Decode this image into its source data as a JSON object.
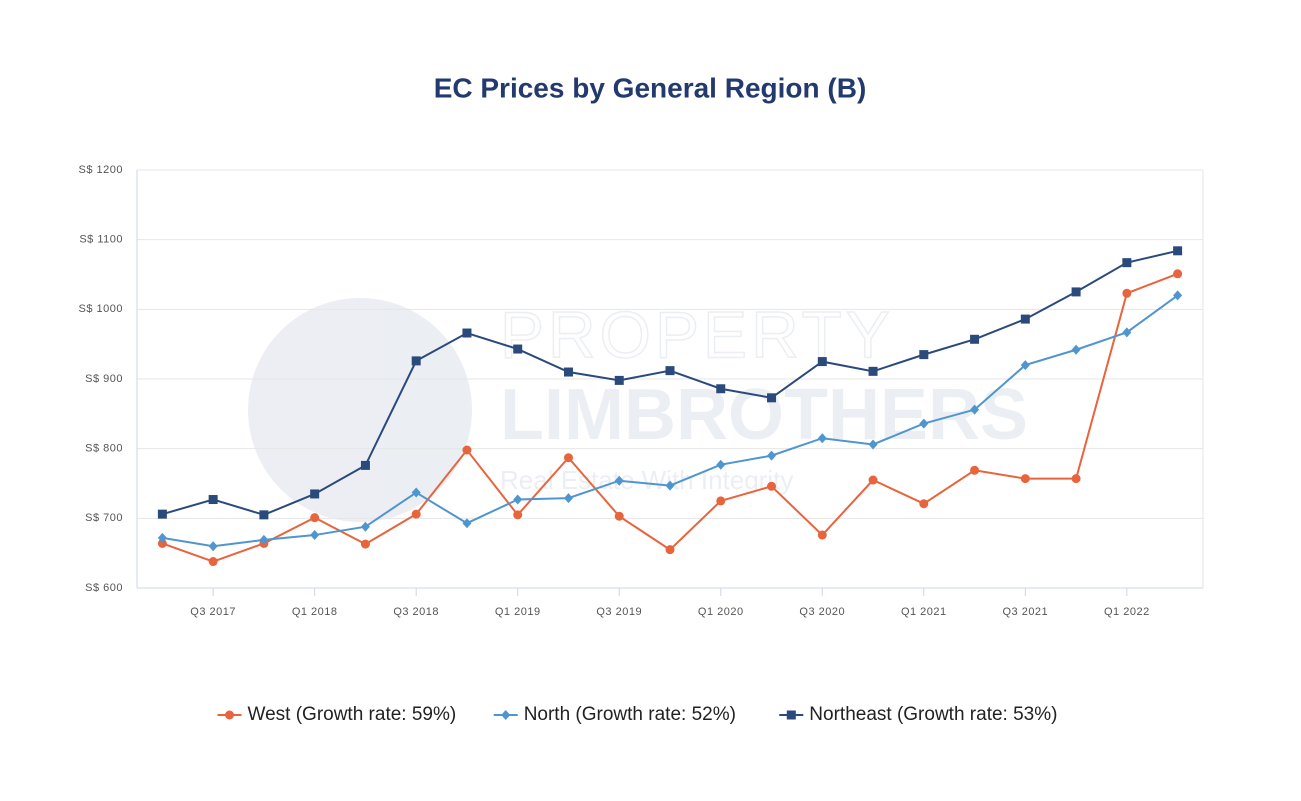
{
  "chart_data": {
    "type": "line",
    "title": "EC Prices by General Region (B)",
    "watermark": [
      "PROPERTY",
      "LIMBROTHERS",
      "Real Estate With Integrity"
    ],
    "categories": [
      null,
      "Q3 2017",
      null,
      "Q1 2018",
      null,
      "Q3 2018",
      null,
      "Q1 2019",
      null,
      "Q3 2019",
      null,
      "Q1 2020",
      null,
      "Q3 2020",
      null,
      "Q1 2021",
      null,
      "Q3 2021",
      null,
      "Q1 2022",
      null
    ],
    "series": [
      {
        "name": "West (Growth rate: 59%)",
        "color": "#e8643c",
        "marker": "circle",
        "values": [
          664,
          638,
          664,
          701,
          663,
          706,
          798,
          705,
          787,
          703,
          655,
          725,
          746,
          676,
          755,
          721,
          769,
          757,
          757,
          1023,
          1051
        ]
      },
      {
        "name": "North (Growth rate: 52%)",
        "color": "#4f95d0",
        "marker": "diamond",
        "values": [
          672,
          660,
          669,
          676,
          688,
          737,
          693,
          727,
          729,
          754,
          747,
          777,
          790,
          815,
          806,
          836,
          856,
          920,
          942,
          967,
          1020
        ]
      },
      {
        "name": "Northeast (Growth rate: 53%)",
        "color": "#2a4a7c",
        "marker": "square",
        "values": [
          706,
          727,
          705,
          735,
          776,
          926,
          966,
          943,
          910,
          898,
          912,
          886,
          873,
          925,
          911,
          935,
          957,
          986,
          1025,
          1067,
          1084
        ]
      }
    ],
    "ylim": [
      600,
      1200
    ],
    "yticks": [
      {
        "value": 600,
        "label": "S$ 600"
      },
      {
        "value": 700,
        "label": "S$ 700"
      },
      {
        "value": 800,
        "label": "S$ 800"
      },
      {
        "value": 900,
        "label": "S$ 900"
      },
      {
        "value": 1000,
        "label": "S$ 1000"
      },
      {
        "value": 1100,
        "label": "S$ 1100"
      },
      {
        "value": 1200,
        "label": "S$ 1200"
      }
    ],
    "grid": true,
    "legend": "bottom"
  }
}
